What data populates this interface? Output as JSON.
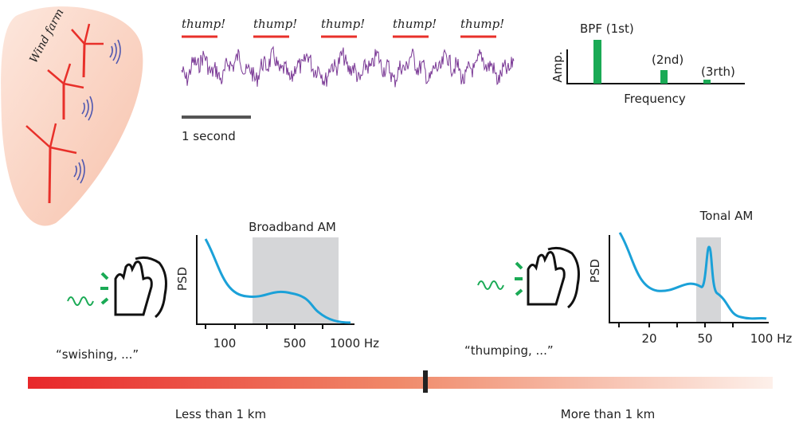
{
  "wind_farm": {
    "label": "Wind farm"
  },
  "waveform": {
    "thumps": [
      "thump!",
      "thump!",
      "thump!",
      "thump!",
      "thump!"
    ],
    "scale_label": "1 second"
  },
  "spectrum": {
    "y_label": "Amp.",
    "x_label": "Frequency",
    "peaks": [
      "BPF (1st)",
      "(2nd)",
      "(3rth)"
    ]
  },
  "broadband": {
    "title": "Broadband AM",
    "y_label": "PSD",
    "x_ticks": [
      "100",
      "500",
      "1000 Hz"
    ],
    "quote": "“swishing, ...”"
  },
  "tonal": {
    "title": "Tonal AM",
    "y_label": "PSD",
    "x_ticks": [
      "20",
      "50",
      "100 Hz"
    ],
    "quote": "“thumping, ...”"
  },
  "distance": {
    "near": "Less than 1 km",
    "far": "More than 1 km"
  }
}
